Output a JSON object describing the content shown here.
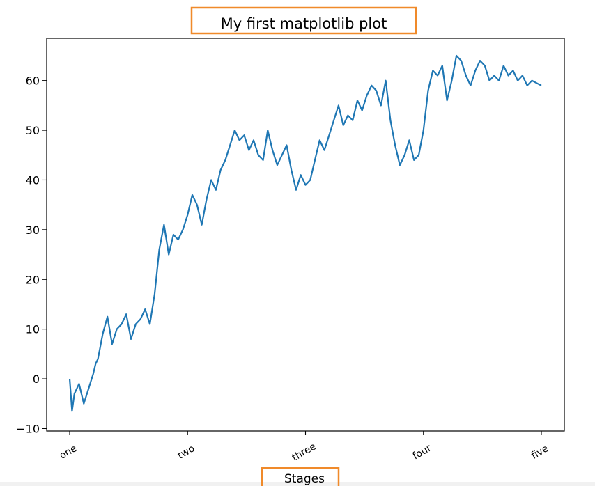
{
  "chart_data": {
    "type": "line",
    "title": "My first matplotlib plot",
    "xlabel": "Stages",
    "ylabel": "",
    "x_range": [
      0,
      1000
    ],
    "ylim": [
      -10.5,
      68.5
    ],
    "x_ticks": [
      {
        "value": 0,
        "label": "one"
      },
      {
        "value": 250,
        "label": "two"
      },
      {
        "value": 500,
        "label": "three"
      },
      {
        "value": 750,
        "label": "four"
      },
      {
        "value": 1000,
        "label": "five"
      }
    ],
    "y_ticks": [
      -10,
      0,
      10,
      20,
      30,
      40,
      50,
      60
    ],
    "grid": false,
    "annotations": [
      "title highlighted with orange box",
      "x-axis label highlighted with orange box"
    ],
    "series": [
      {
        "color": "#1f77b4",
        "x": [
          0,
          5,
          10,
          20,
          30,
          40,
          50,
          55,
          60,
          70,
          80,
          90,
          100,
          110,
          120,
          130,
          140,
          150,
          160,
          170,
          180,
          190,
          200,
          210,
          220,
          230,
          240,
          250,
          260,
          270,
          280,
          290,
          300,
          310,
          320,
          330,
          340,
          350,
          360,
          370,
          380,
          390,
          400,
          410,
          420,
          430,
          440,
          450,
          460,
          470,
          480,
          490,
          500,
          510,
          520,
          530,
          540,
          550,
          560,
          570,
          580,
          590,
          600,
          610,
          620,
          630,
          640,
          650,
          660,
          670,
          680,
          690,
          700,
          710,
          720,
          730,
          740,
          750,
          760,
          770,
          780,
          790,
          800,
          810,
          820,
          830,
          840,
          850,
          860,
          870,
          880,
          890,
          900,
          910,
          920,
          930,
          940,
          950,
          960,
          970,
          980,
          990,
          1000
        ],
        "y": [
          0,
          -6.5,
          -3,
          -1,
          -5,
          -2,
          1,
          3,
          4,
          9,
          12.5,
          7,
          10,
          11,
          13,
          8,
          11,
          12,
          14,
          11,
          17,
          26,
          31,
          25,
          29,
          28,
          30,
          33,
          37,
          35,
          31,
          36,
          40,
          38,
          42,
          44,
          47,
          50,
          48,
          49,
          46,
          48,
          45,
          44,
          50,
          46,
          43,
          45,
          47,
          42,
          38,
          41,
          39,
          40,
          44,
          48,
          46,
          49,
          52,
          55,
          51,
          53,
          52,
          56,
          54,
          57,
          59,
          58,
          55,
          60,
          52,
          47,
          43,
          45,
          48,
          44,
          45,
          50,
          58,
          62,
          61,
          63,
          56,
          60,
          65,
          64,
          61,
          59,
          62,
          64,
          63,
          60,
          61,
          60,
          63,
          61,
          62,
          60,
          61,
          59,
          60,
          59.5,
          59
        ]
      }
    ]
  }
}
